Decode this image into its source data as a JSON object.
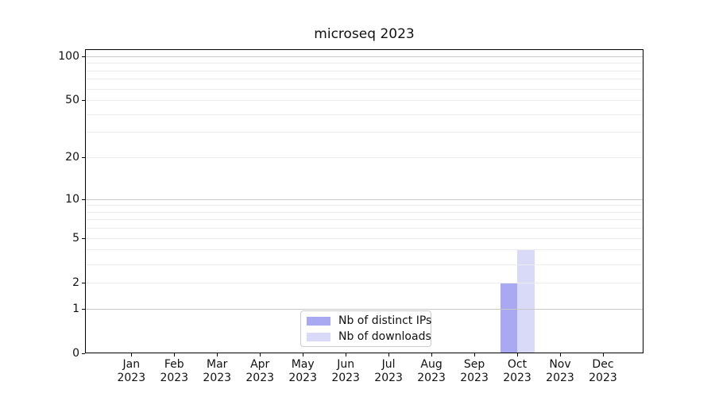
{
  "title": "microseq 2023",
  "colors": {
    "distinct_ips": "#a9a9f2",
    "downloads": "#d9d9f8",
    "grid_major": "#c8c8c8",
    "grid_minor": "#ececec",
    "axis": "#000000",
    "text": "#111111",
    "legend_border": "#cccccc"
  },
  "legend": {
    "entries": [
      {
        "label": "Nb of distinct IPs",
        "color_key": "distinct_ips"
      },
      {
        "label": "Nb of downloads",
        "color_key": "downloads"
      }
    ]
  },
  "chart_data": {
    "type": "bar",
    "title": "microseq 2023",
    "xlabel": "",
    "ylabel": "",
    "categories": [
      "Jan 2023",
      "Feb 2023",
      "Mar 2023",
      "Apr 2023",
      "May 2023",
      "Jun 2023",
      "Jul 2023",
      "Aug 2023",
      "Sep 2023",
      "Oct 2023",
      "Nov 2023",
      "Dec 2023"
    ],
    "series": [
      {
        "name": "Nb of distinct IPs",
        "color_key": "distinct_ips",
        "values": [
          0,
          0,
          0,
          0,
          0,
          0,
          0,
          0,
          0,
          2,
          0,
          0
        ]
      },
      {
        "name": "Nb of downloads",
        "color_key": "downloads",
        "values": [
          0,
          0,
          0,
          0,
          0,
          0,
          0,
          0,
          0,
          4,
          0,
          0
        ]
      }
    ],
    "yscale": "log10(1+v)",
    "yticks": [
      0,
      1,
      2,
      5,
      10,
      20,
      50,
      100
    ],
    "grid_major_values": [
      1,
      10,
      100
    ],
    "grid_minor_values": [
      2,
      3,
      4,
      5,
      6,
      7,
      8,
      9,
      20,
      30,
      40,
      50,
      60,
      70,
      80,
      90
    ],
    "ylim": [
      0,
      111.4
    ],
    "grid": true,
    "legend_position": "lower center"
  }
}
